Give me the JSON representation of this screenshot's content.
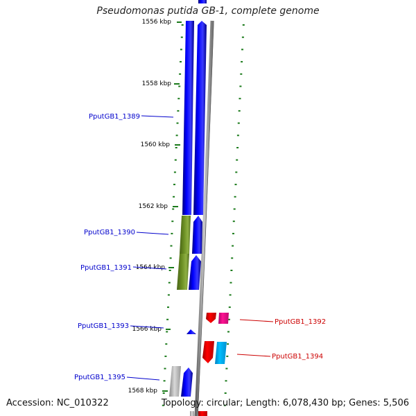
{
  "header": {
    "title": "Pseudomonas putida GB-1, complete genome"
  },
  "footer": {
    "accession": "Accession: NC_010322",
    "topology": "Topology: circular; Length: 6,078,430 bp; Genes: 5,506"
  },
  "scale": {
    "labels": [
      "1556 kbp",
      "1558 kbp",
      "1560 kbp",
      "1562 kbp",
      "1564 kbp",
      "1566 kbp",
      "1568 kbp"
    ]
  },
  "genes": [
    {
      "id": "PputGB1_1389",
      "strand": "forward",
      "color": "#0000ff"
    },
    {
      "id": "PputGB1_1390",
      "strand": "forward",
      "color": "#6b8e23"
    },
    {
      "id": "PputGB1_1391",
      "strand": "forward",
      "color": "#0000ff"
    },
    {
      "id": "PputGB1_1392",
      "strand": "reverse",
      "color": "#ff0000"
    },
    {
      "id": "PputGB1_1393",
      "strand": "forward",
      "color": "#0000ff"
    },
    {
      "id": "PputGB1_1394",
      "strand": "reverse",
      "color": "#ff0000"
    },
    {
      "id": "PputGB1_1395",
      "strand": "forward",
      "color": "#0000ff"
    }
  ],
  "colors": {
    "forward_label": "#0000cc",
    "reverse_label": "#cc0000",
    "tick": "#1a7a1a",
    "backbone": "#999999",
    "pink_feature": "#ff1493",
    "cyan_feature": "#00bfff",
    "grey_feature": "#b0b0b0"
  }
}
